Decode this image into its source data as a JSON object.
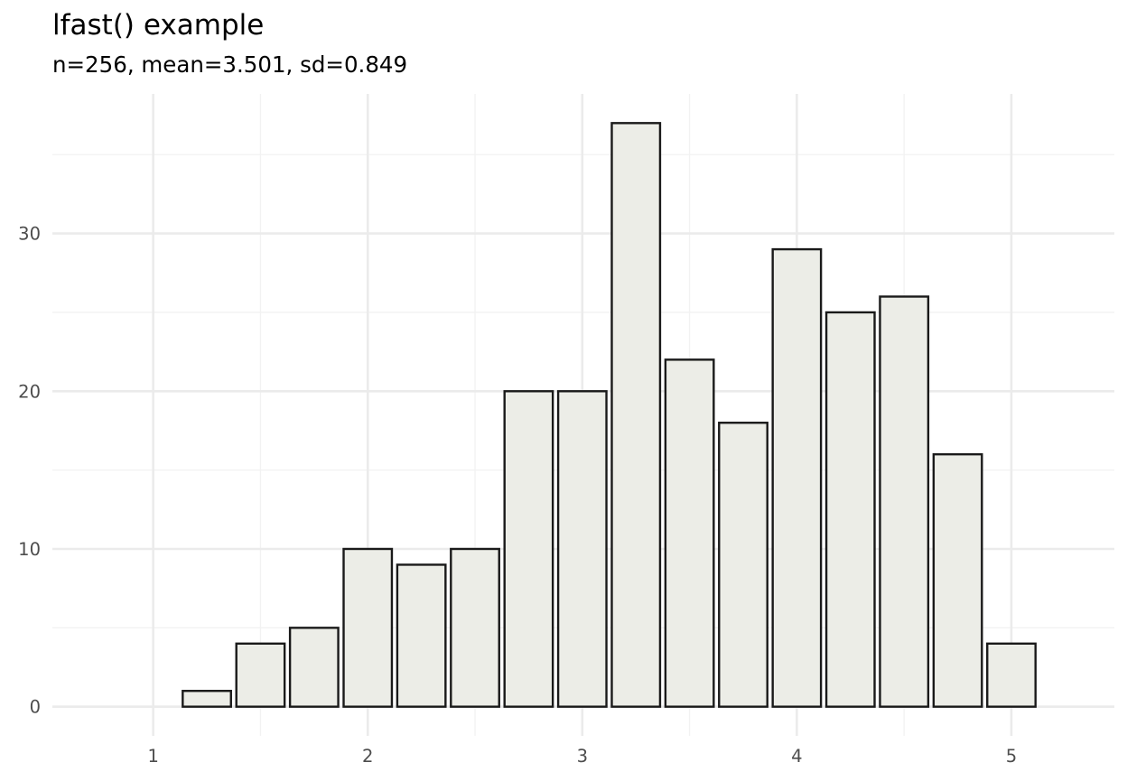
{
  "chart_data": {
    "type": "bar",
    "title": "lfast() example",
    "subtitle": "n=256, mean=3.501, sd=0.849",
    "xlabel": "",
    "ylabel": "",
    "x": [
      1.25,
      1.5,
      1.75,
      2.0,
      2.25,
      2.5,
      2.75,
      3.0,
      3.25,
      3.5,
      3.75,
      4.0,
      4.25,
      4.5,
      4.75,
      5.0
    ],
    "values": [
      1,
      4,
      5,
      10,
      9,
      10,
      20,
      20,
      37,
      22,
      18,
      29,
      25,
      26,
      16,
      4
    ],
    "bin_width": 0.25,
    "bar_width_fraction": 0.9,
    "xlim": [
      0.53,
      5.48
    ],
    "ylim": [
      -1.85,
      38.85
    ],
    "x_ticks": [
      1,
      2,
      3,
      4,
      5
    ],
    "x_tick_labels": [
      "1",
      "2",
      "3",
      "4",
      "5"
    ],
    "x_minor_ticks": [
      1.5,
      2.5,
      3.5,
      4.5
    ],
    "y_ticks": [
      0,
      10,
      20,
      30
    ],
    "y_tick_labels": [
      "0",
      "10",
      "20",
      "30"
    ],
    "y_minor_ticks": [
      5,
      15,
      25,
      35
    ],
    "grid": true,
    "legend": null,
    "theme": "minimal",
    "colors": {
      "bar_fill": "#ECEDE7",
      "bar_outline": "#1A1A1A",
      "grid_major": "#EBEBEB",
      "grid_minor": "#F2F2F2",
      "tick_text": "#4D4D4D",
      "title_text": "#000000"
    }
  }
}
